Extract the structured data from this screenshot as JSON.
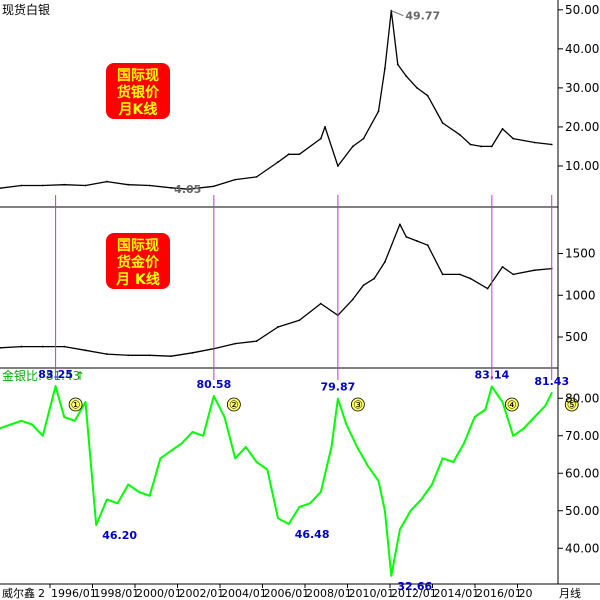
{
  "colors": {
    "price_line": "#000000",
    "ratio_line": "#00ff00",
    "label_box": "#ff0000",
    "label_text": "#ffff00",
    "marker": "#cc33cc",
    "value_text": "#0000cc",
    "ratio_header": "#00aa00",
    "circle_fill": "#ffff66"
  },
  "chart_data": [
    {
      "type": "line",
      "title": "现货白银",
      "box_label": [
        "国际现",
        "货银价",
        "月K线"
      ],
      "yticks": [
        10,
        20,
        30,
        40,
        50
      ],
      "ylim": [
        0,
        52
      ],
      "annotations": [
        {
          "text": "49.77",
          "x": 2011.3,
          "y": 49.77
        },
        {
          "text": "4.05",
          "x": 2001.8,
          "y": 4.05
        }
      ],
      "series": [
        {
          "x": [
            1993.0,
            1994.0,
            1995.0,
            1996.0,
            1997.0,
            1998.0,
            1999.0,
            2000.0,
            2001.0,
            2001.8,
            2003.0,
            2004.0,
            2005.0,
            2006.0,
            2006.5,
            2007.0,
            2008.0,
            2008.2,
            2008.8,
            2009.5,
            2010.0,
            2010.7,
            2011.0,
            2011.3,
            2011.6,
            2012.0,
            2012.5,
            2013.0,
            2013.7,
            2014.5,
            2015.0,
            2015.5,
            2016.0,
            2016.5,
            2017.0,
            2018.0,
            2018.8
          ],
          "y": [
            4.3,
            5.0,
            5.0,
            5.2,
            5.0,
            6.0,
            5.2,
            5.0,
            4.4,
            4.05,
            4.8,
            6.5,
            7.2,
            11,
            13,
            13,
            17,
            20,
            10,
            15,
            17,
            24,
            35,
            49.77,
            36,
            33,
            30,
            28,
            21,
            18,
            15.5,
            15,
            15,
            19.5,
            17,
            16,
            15.5
          ]
        }
      ]
    },
    {
      "type": "line",
      "box_label": [
        "国际现",
        "货金价",
        "月 K线"
      ],
      "yticks": [
        500,
        1000,
        1500
      ],
      "ylim": [
        200,
        1950
      ],
      "series": [
        {
          "x": [
            1993.0,
            1994.0,
            1995.0,
            1996.0,
            1997.0,
            1998.0,
            1999.0,
            2000.0,
            2001.0,
            2002.0,
            2003.0,
            2004.0,
            2005.0,
            2006.0,
            2007.0,
            2008.0,
            2008.8,
            2009.5,
            2010.0,
            2010.5,
            2011.0,
            2011.7,
            2012.0,
            2012.5,
            2013.0,
            2013.7,
            2014.5,
            2015.0,
            2015.8,
            2016.5,
            2017.0,
            2018.0,
            2018.8
          ],
          "y": [
            370,
            385,
            385,
            385,
            340,
            295,
            280,
            280,
            270,
            310,
            360,
            420,
            450,
            620,
            700,
            900,
            760,
            950,
            1120,
            1200,
            1400,
            1850,
            1700,
            1650,
            1600,
            1250,
            1250,
            1200,
            1080,
            1340,
            1250,
            1300,
            1320
          ]
        }
      ]
    },
    {
      "type": "line",
      "title": "金银比: 81.43",
      "yticks": [
        40,
        50,
        60,
        70,
        80
      ],
      "ylim": [
        31,
        87
      ],
      "annotations": [
        {
          "text": "83.25",
          "x": 1995.6,
          "y": 83.25
        },
        {
          "text": "46.20",
          "x": 1997.5,
          "y": 46.2
        },
        {
          "text": "80.58",
          "x": 2003.0,
          "y": 80.58
        },
        {
          "text": "46.48",
          "x": 2006.5,
          "y": 46.48
        },
        {
          "text": "79.87",
          "x": 2008.8,
          "y": 79.87
        },
        {
          "text": "32.66",
          "x": 2011.3,
          "y": 32.66
        },
        {
          "text": "83.14",
          "x": 2016.0,
          "y": 83.14
        },
        {
          "text": "81.43",
          "x": 2018.8,
          "y": 81.43
        }
      ],
      "markers": [
        {
          "label": "①",
          "x": 1995.6
        },
        {
          "label": "②",
          "x": 2003.0
        },
        {
          "label": "③",
          "x": 2008.8
        },
        {
          "label": "④",
          "x": 2016.0
        },
        {
          "label": "⑤",
          "x": 2018.8
        }
      ],
      "series": [
        {
          "x": [
            1993.0,
            1993.5,
            1994.0,
            1994.5,
            1995.0,
            1995.6,
            1996.0,
            1996.5,
            1997.0,
            1997.5,
            1998.0,
            1998.5,
            1999.0,
            1999.5,
            2000.0,
            2000.5,
            2001.0,
            2001.5,
            2002.0,
            2002.5,
            2003.0,
            2003.5,
            2004.0,
            2004.5,
            2005.0,
            2005.5,
            2006.0,
            2006.5,
            2007.0,
            2007.5,
            2008.0,
            2008.5,
            2008.8,
            2009.2,
            2009.7,
            2010.2,
            2010.7,
            2011.0,
            2011.3,
            2011.7,
            2012.2,
            2012.7,
            2013.2,
            2013.7,
            2014.2,
            2014.7,
            2015.2,
            2015.7,
            2016.0,
            2016.5,
            2017.0,
            2017.5,
            2018.0,
            2018.5,
            2018.8
          ],
          "y": [
            72,
            73,
            74,
            73,
            70,
            83.25,
            75,
            74,
            79,
            46.2,
            53,
            52,
            57,
            55,
            54,
            64,
            66,
            68,
            71,
            70,
            80.58,
            75,
            64,
            67,
            63,
            61,
            48,
            46.48,
            51,
            52,
            55,
            67,
            79.87,
            73,
            67,
            62,
            58,
            50,
            32.66,
            45,
            50,
            53,
            57,
            64,
            63,
            68,
            75,
            77,
            83.14,
            79,
            70,
            72,
            75,
            78,
            81.43
          ]
        }
      ]
    }
  ],
  "xaxis": {
    "brand": "威尔鑫",
    "ticks": [
      "1996/01",
      "1998/01",
      "2000/01",
      "2002/01",
      "2004/01",
      "2006/01",
      "2008/01",
      "2010/01",
      "2012/01",
      "2014/01",
      "2016/01",
      "20"
    ],
    "period": "月线"
  }
}
